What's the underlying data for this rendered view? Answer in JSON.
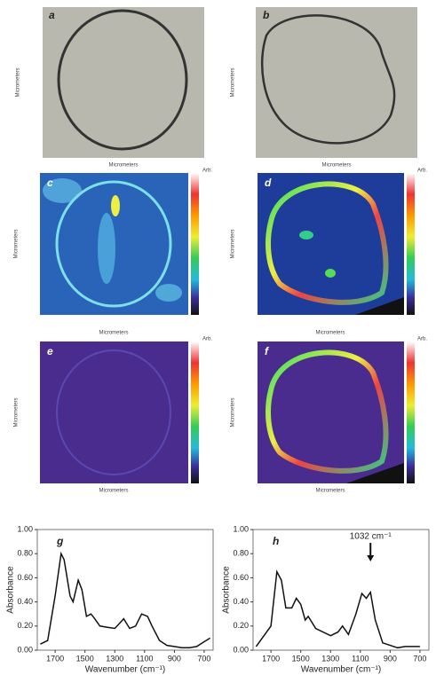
{
  "panels": [
    {
      "label": "a",
      "axis_label": "Micrometers"
    },
    {
      "label": "b",
      "axis_label": "Micrometers"
    },
    {
      "label": "c",
      "axis_label": "Micrometers",
      "colorbar_title": "Arb."
    },
    {
      "label": "d",
      "axis_label": "Micrometers",
      "colorbar_title": "Arb."
    },
    {
      "label": "e",
      "axis_label": "Micrometers",
      "colorbar_title": "Arb."
    },
    {
      "label": "f",
      "axis_label": "Micrometers",
      "colorbar_title": "Arb."
    }
  ],
  "chart_data": [
    {
      "type": "line",
      "label": "g",
      "xlabel": "Wavenumber (cm⁻¹)",
      "ylabel": "Absorbance",
      "color": "#111",
      "xlim": [
        1820,
        640
      ],
      "xticks": [
        1700,
        1500,
        1300,
        1100,
        900,
        700
      ],
      "ylim": [
        0,
        1
      ],
      "yticks": [
        {
          "value": 0,
          "label": "0.00"
        },
        {
          "value": 0.2,
          "label": "0.20"
        },
        {
          "value": 0.4,
          "label": "0.40"
        },
        {
          "value": 0.6,
          "label": "0.60"
        },
        {
          "value": 0.8,
          "label": "0.80"
        },
        {
          "value": 1,
          "label": "1.00"
        }
      ],
      "x": [
        1800,
        1750,
        1700,
        1660,
        1640,
        1600,
        1580,
        1545,
        1520,
        1490,
        1460,
        1440,
        1400,
        1350,
        1300,
        1270,
        1240,
        1200,
        1160,
        1120,
        1080,
        1050,
        1000,
        950,
        900,
        850,
        800,
        750,
        700,
        660
      ],
      "values": [
        0.05,
        0.08,
        0.45,
        0.8,
        0.75,
        0.45,
        0.4,
        0.58,
        0.5,
        0.28,
        0.3,
        0.27,
        0.2,
        0.19,
        0.18,
        0.22,
        0.26,
        0.18,
        0.2,
        0.3,
        0.28,
        0.2,
        0.08,
        0.04,
        0.03,
        0.02,
        0.02,
        0.03,
        0.07,
        0.1
      ]
    },
    {
      "type": "line",
      "label": "h",
      "xlabel": "Wavenumber (cm⁻¹)",
      "ylabel": "Absorbance",
      "color": "#111",
      "xlim": [
        1820,
        640
      ],
      "xticks": [
        1700,
        1500,
        1300,
        1100,
        900,
        700
      ],
      "ylim": [
        0,
        1
      ],
      "yticks": [
        {
          "value": 0,
          "label": "0.00"
        },
        {
          "value": 0.2,
          "label": "0.20"
        },
        {
          "value": 0.4,
          "label": "0.40"
        },
        {
          "value": 0.6,
          "label": "0.60"
        },
        {
          "value": 0.8,
          "label": "0.80"
        },
        {
          "value": 1,
          "label": "1.00"
        }
      ],
      "annotation": {
        "text": "1032 cm⁻¹",
        "x": 1032
      },
      "x": [
        1800,
        1700,
        1660,
        1630,
        1600,
        1560,
        1530,
        1500,
        1470,
        1450,
        1400,
        1300,
        1250,
        1220,
        1180,
        1130,
        1090,
        1060,
        1032,
        1000,
        950,
        900,
        850,
        800,
        750,
        700
      ],
      "values": [
        0.03,
        0.2,
        0.65,
        0.58,
        0.35,
        0.35,
        0.43,
        0.38,
        0.25,
        0.28,
        0.18,
        0.12,
        0.15,
        0.2,
        0.13,
        0.3,
        0.47,
        0.43,
        0.48,
        0.25,
        0.06,
        0.04,
        0.02,
        0.03,
        0.03,
        0.03
      ]
    }
  ]
}
